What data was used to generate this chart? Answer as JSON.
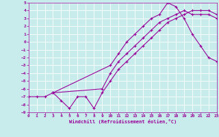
{
  "bg_color": "#c8ecec",
  "line_color": "#990099",
  "grid_color": "#ffffff",
  "xlabel": "Windchill (Refroidissement éolien,°C)",
  "xmin": 0,
  "xmax": 23,
  "ymin": -9,
  "ymax": 5,
  "yticks": [
    5,
    4,
    3,
    2,
    1,
    0,
    -1,
    -2,
    -3,
    -4,
    -5,
    -6,
    -7,
    -8,
    -9
  ],
  "xticks": [
    0,
    1,
    2,
    3,
    4,
    5,
    6,
    7,
    8,
    9,
    10,
    11,
    12,
    13,
    14,
    15,
    16,
    17,
    18,
    19,
    20,
    21,
    22,
    23
  ],
  "line1_x": [
    0,
    1,
    2,
    3,
    4,
    5,
    6,
    7,
    8,
    9,
    10,
    11,
    12,
    13,
    14,
    15,
    16,
    17,
    18,
    19,
    20,
    21,
    22,
    23
  ],
  "line1_y": [
    -7.0,
    -7.0,
    -7.0,
    -6.5,
    -7.5,
    -8.5,
    -7.0,
    -7.0,
    -8.5,
    -6.5,
    -5.0,
    -3.5,
    -2.5,
    -1.5,
    -0.5,
    0.5,
    1.5,
    2.5,
    3.0,
    3.5,
    4.0,
    4.0,
    4.0,
    3.5
  ],
  "line2_x": [
    3,
    9,
    10,
    11,
    12,
    13,
    14,
    15,
    16,
    17,
    18,
    19,
    20,
    21,
    22,
    23
  ],
  "line2_y": [
    -6.5,
    -6.0,
    -4.0,
    -2.5,
    -1.5,
    -0.5,
    0.5,
    1.5,
    2.5,
    3.0,
    3.5,
    4.0,
    3.5,
    3.5,
    3.5,
    3.0
  ],
  "line3_x": [
    3,
    10,
    11,
    12,
    13,
    14,
    15,
    16,
    17,
    18,
    19,
    20,
    21,
    22,
    23
  ],
  "line3_y": [
    -6.5,
    -3.0,
    -1.5,
    0.0,
    1.0,
    2.0,
    3.0,
    3.5,
    5.0,
    4.5,
    3.0,
    1.0,
    -0.5,
    -2.0,
    -2.5
  ]
}
